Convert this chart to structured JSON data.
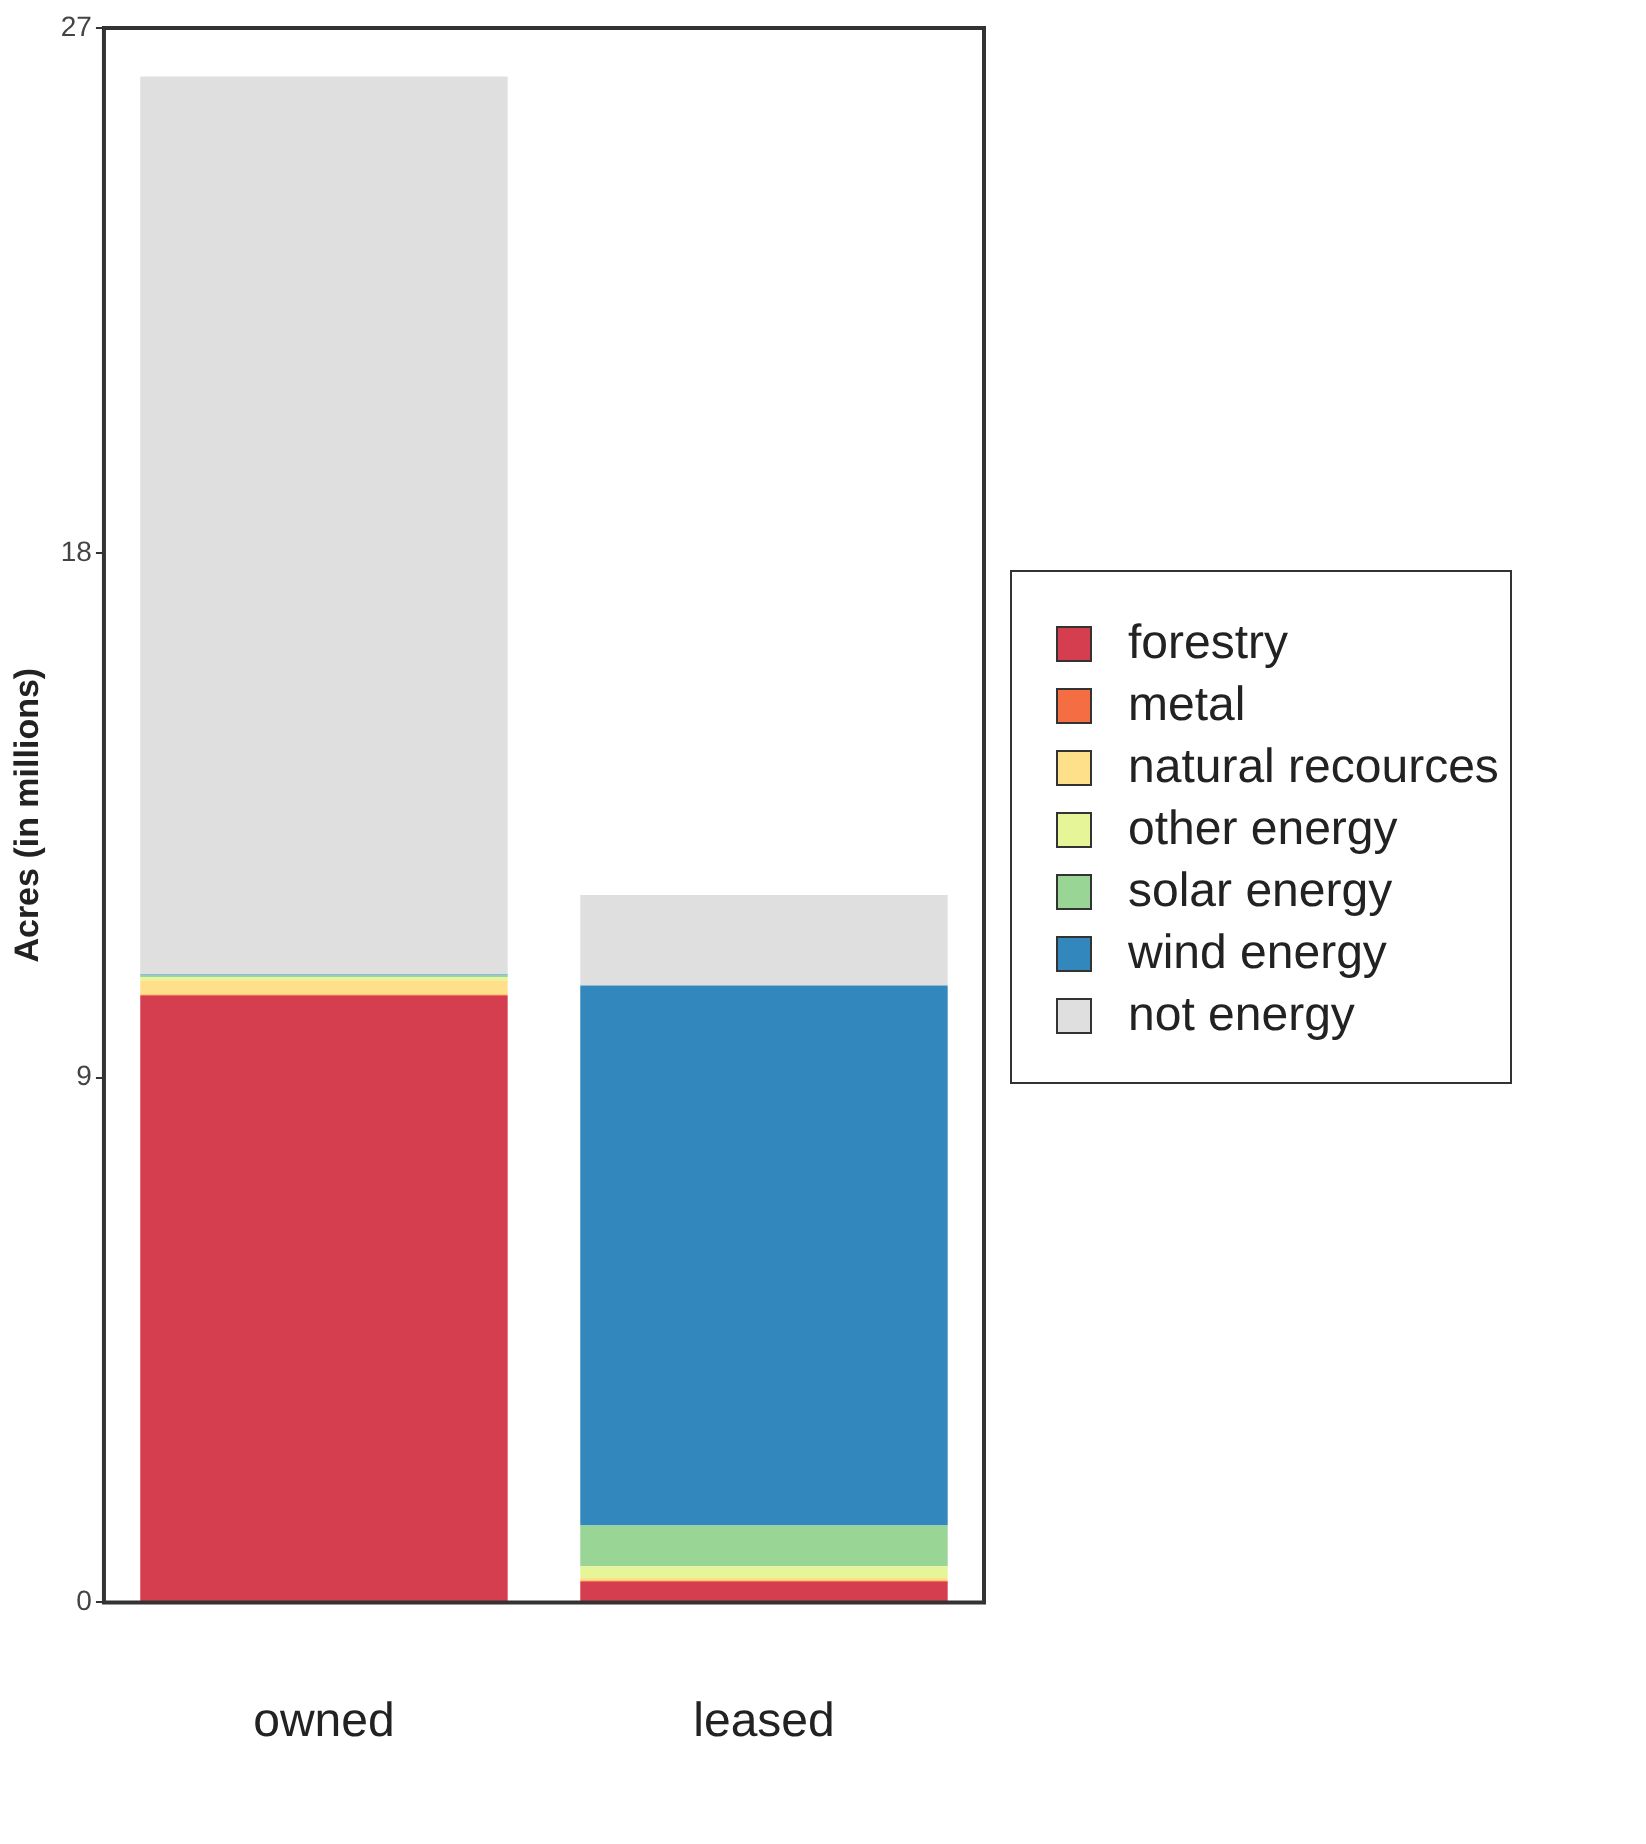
{
  "chart_data": {
    "type": "bar",
    "stacked": true,
    "ylabel": "Acres (in millions)",
    "categories": [
      "owned",
      "leased"
    ],
    "series": [
      {
        "name": "forestry",
        "color": "#d53e4f",
        "values": [
          10.4,
          0.35
        ]
      },
      {
        "name": "metal",
        "color": "#f46d43",
        "values": [
          0.02,
          0.02
        ]
      },
      {
        "name": "natural recources",
        "color": "#fee08b",
        "values": [
          0.25,
          0.05
        ]
      },
      {
        "name": "other energy",
        "color": "#e6f598",
        "values": [
          0.05,
          0.2
        ]
      },
      {
        "name": "solar energy",
        "color": "#99d594",
        "values": [
          0.03,
          0.7
        ]
      },
      {
        "name": "wind energy",
        "color": "#3288bd",
        "values": [
          0.02,
          9.26
        ]
      },
      {
        "name": "not energy",
        "color": "#dfdfdf",
        "values": [
          15.4,
          1.55
        ]
      }
    ],
    "ylim": [
      0,
      27
    ],
    "yticks": [
      0,
      9,
      18,
      27
    ],
    "grid": false,
    "legend": "right"
  }
}
